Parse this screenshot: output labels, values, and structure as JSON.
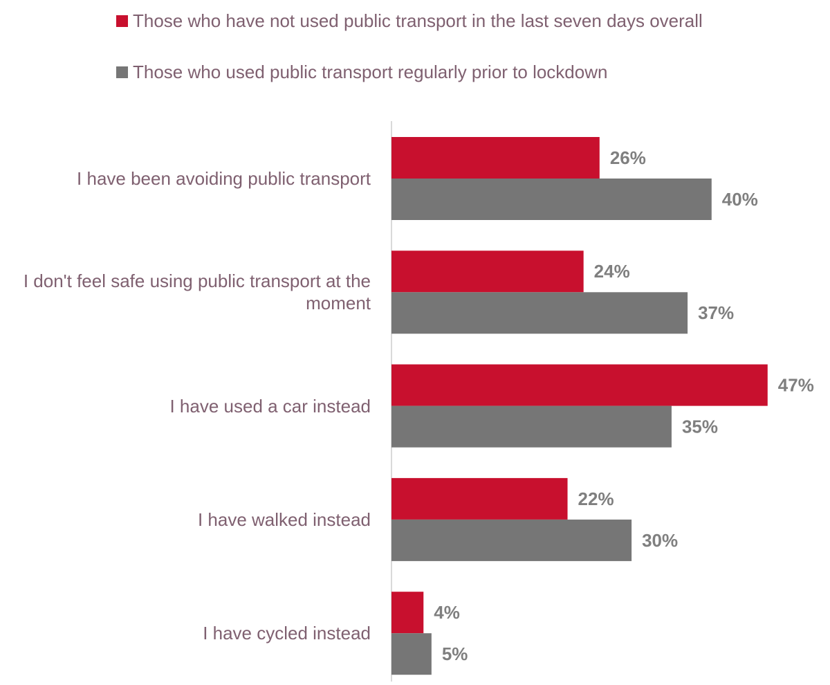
{
  "chart_data": {
    "type": "hbar",
    "categories": [
      "I have been avoiding public transport",
      "I don't feel safe using public transport at the moment",
      "I have used a car instead",
      "I have walked instead",
      "I have cycled instead"
    ],
    "series": [
      {
        "name": "Those who have not used public transport in the last seven days overall",
        "color": "#c8102e",
        "values": [
          26,
          24,
          47,
          22,
          4
        ],
        "value_labels": [
          "26%",
          "24%",
          "47%",
          "22%",
          "4%"
        ]
      },
      {
        "name": "Those who used public transport regularly prior to lockdown",
        "color": "#767676",
        "values": [
          40,
          37,
          35,
          30,
          5
        ],
        "value_labels": [
          "40%",
          "37%",
          "35%",
          "30%",
          "5%"
        ]
      }
    ],
    "xlim": [
      0,
      50
    ]
  }
}
